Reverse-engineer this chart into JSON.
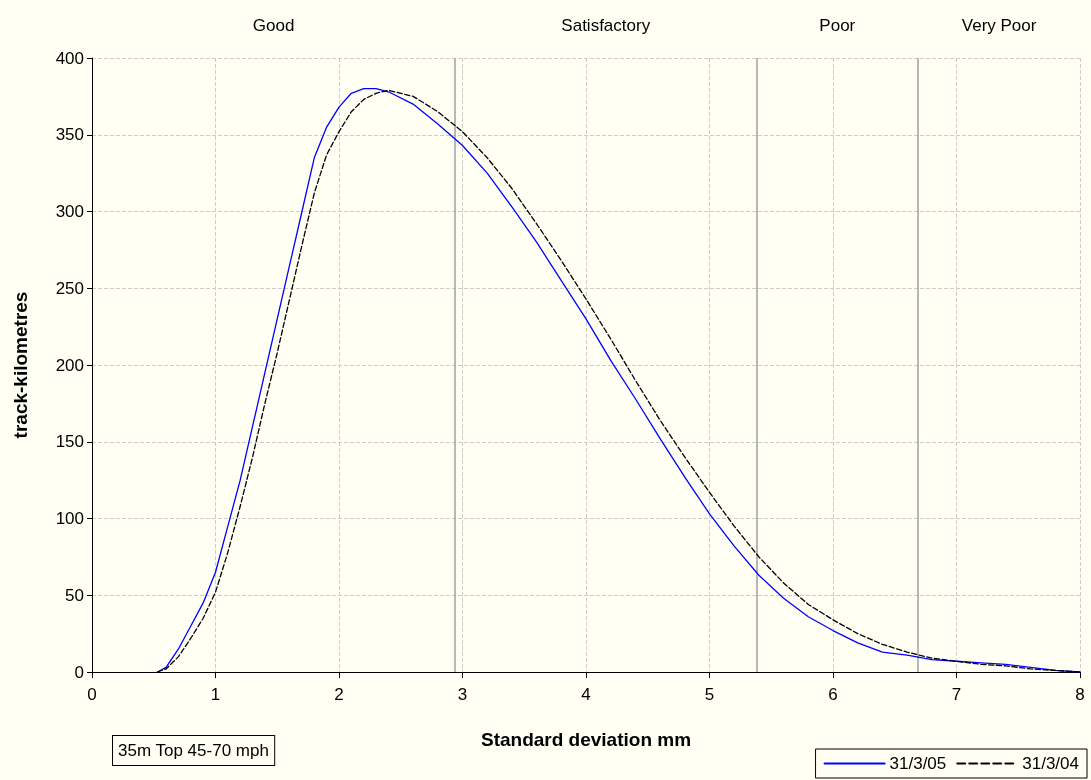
{
  "chart_data": {
    "type": "line",
    "xlabel": "Standard deviation mm",
    "ylabel": "track-kilometres",
    "xlim": [
      0,
      8
    ],
    "xticks": [
      0,
      1,
      2,
      3,
      4,
      5,
      6,
      7,
      8
    ],
    "ylim": [
      0,
      400
    ],
    "yticks": [
      0,
      50,
      100,
      150,
      200,
      250,
      300,
      350,
      400
    ],
    "grid": true,
    "legend": "bottom right",
    "marker": "none",
    "annotations": [
      "35m Top 45-70 mph",
      "Good",
      "Satisfactory",
      "Poor",
      "Very Poor"
    ],
    "ref_lines": [
      {
        "axis": "x",
        "value": 2.94,
        "color": "#a0a0a0"
      },
      {
        "axis": "x",
        "value": 5.38,
        "color": "#a0a0a0"
      },
      {
        "axis": "x",
        "value": 6.69,
        "color": "#a0a0a0"
      }
    ],
    "series": [
      {
        "name": "31/3/05",
        "color": "#0000ff",
        "line_style": "solid",
        "x": [
          0.53,
          0.6,
          0.7,
          0.8,
          0.9,
          1.0,
          1.1,
          1.2,
          1.3,
          1.4,
          1.5,
          1.6,
          1.7,
          1.8,
          1.9,
          2.0,
          2.1,
          2.2,
          2.3,
          2.4,
          2.6,
          2.8,
          3.0,
          3.2,
          3.4,
          3.6,
          3.8,
          4.0,
          4.2,
          4.4,
          4.6,
          4.8,
          5.0,
          5.2,
          5.4,
          5.6,
          5.8,
          6.0,
          6.2,
          6.4,
          6.6,
          6.8,
          7.0,
          7.2,
          7.4,
          7.6,
          7.8,
          8.0
        ],
        "values": [
          0,
          3,
          15,
          30,
          45,
          65,
          95,
          125,
          160,
          195,
          230,
          265,
          300,
          335,
          355,
          368,
          377,
          380,
          380,
          378,
          370,
          357,
          343,
          325,
          303,
          280,
          255,
          230,
          203,
          178,
          152,
          127,
          103,
          82,
          63,
          48,
          36,
          27,
          19,
          13,
          11,
          8,
          7,
          6,
          5,
          3,
          1,
          0
        ]
      },
      {
        "name": "31/3/04",
        "color": "#000000",
        "line_style": "dashed",
        "x": [
          0.53,
          0.6,
          0.7,
          0.8,
          0.9,
          1.0,
          1.1,
          1.2,
          1.3,
          1.4,
          1.5,
          1.6,
          1.7,
          1.8,
          1.9,
          2.0,
          2.1,
          2.2,
          2.3,
          2.4,
          2.6,
          2.8,
          3.0,
          3.2,
          3.4,
          3.6,
          3.8,
          4.0,
          4.2,
          4.4,
          4.6,
          4.8,
          5.0,
          5.2,
          5.4,
          5.6,
          5.8,
          6.0,
          6.2,
          6.4,
          6.6,
          6.8,
          7.0,
          7.2,
          7.4,
          7.6,
          7.8,
          8.0
        ],
        "values": [
          0,
          2,
          10,
          22,
          35,
          52,
          78,
          108,
          140,
          175,
          208,
          243,
          278,
          312,
          337,
          352,
          365,
          373,
          377,
          379,
          375,
          365,
          352,
          335,
          315,
          292,
          268,
          243,
          217,
          190,
          164,
          140,
          117,
          95,
          75,
          58,
          44,
          34,
          25,
          18,
          13,
          9,
          7,
          5,
          4,
          2,
          1,
          0
        ]
      }
    ]
  }
}
